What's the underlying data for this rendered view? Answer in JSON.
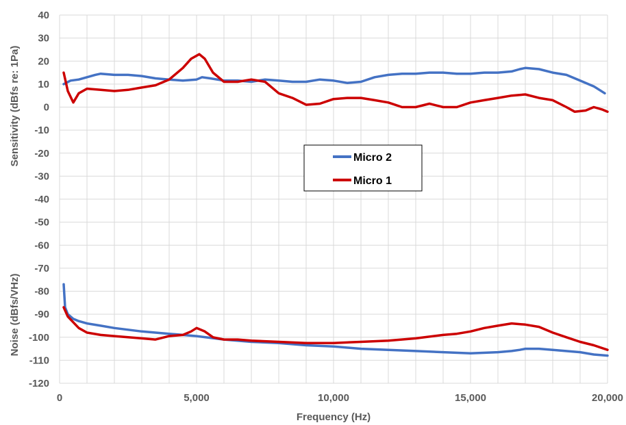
{
  "chart_data": {
    "type": "line",
    "xlabel": "Frequency (Hz)",
    "ylabels": [
      {
        "text": "Sensitivity (dBfs re: 1Pa)"
      },
      {
        "text": "Noise (dBfs/VHz)"
      }
    ],
    "xlim": [
      0,
      20000
    ],
    "ylim": [
      -120,
      40
    ],
    "xticks": [
      {
        "value": 0,
        "label": "0"
      },
      {
        "value": 5000,
        "label": "5,000"
      },
      {
        "value": 10000,
        "label": "10,000"
      },
      {
        "value": 15000,
        "label": "15,000"
      },
      {
        "value": 20000,
        "label": "20,000"
      }
    ],
    "yticks": [
      40,
      30,
      20,
      10,
      0,
      -10,
      -20,
      -30,
      -40,
      -50,
      -60,
      -70,
      -80,
      -90,
      -100,
      -110,
      -120
    ],
    "x_gridlines": [
      0,
      1000,
      2000,
      3000,
      4000,
      5000,
      6000,
      7000,
      8000,
      9000,
      10000,
      11000,
      12000,
      13000,
      14000,
      15000,
      16000,
      17000,
      18000,
      19000,
      20000
    ],
    "grid": true,
    "legend_placement": "center",
    "legend": [
      {
        "name": "Micro 2",
        "color": "#4472c4"
      },
      {
        "name": "Micro 1",
        "color": "#cc0000"
      }
    ],
    "series": [
      {
        "name": "Micro 2",
        "part": "sensitivity",
        "color": "#4472c4",
        "x": [
          150,
          400,
          700,
          1000,
          1300,
          1500,
          2000,
          2500,
          3000,
          3500,
          4000,
          4500,
          5000,
          5200,
          5500,
          6000,
          6500,
          7000,
          7500,
          8000,
          8500,
          9000,
          9500,
          10000,
          10500,
          11000,
          11500,
          12000,
          12500,
          13000,
          13500,
          14000,
          14500,
          15000,
          15500,
          16000,
          16500,
          16800,
          17000,
          17500,
          18000,
          18500,
          19000,
          19500,
          19900
        ],
        "y": [
          10,
          11.5,
          12,
          13,
          14,
          14.5,
          14,
          14,
          13.5,
          12.5,
          12,
          11.5,
          12,
          13,
          12.5,
          11.5,
          11.5,
          11,
          12,
          11.5,
          11,
          11,
          12,
          11.5,
          10.5,
          11,
          13,
          14,
          14.5,
          14.5,
          15,
          15,
          14.5,
          14.5,
          15,
          15,
          15.5,
          16.5,
          17,
          16.5,
          15,
          14,
          11.5,
          9,
          6
        ]
      },
      {
        "name": "Micro 1",
        "part": "sensitivity",
        "color": "#cc0000",
        "x": [
          150,
          300,
          500,
          700,
          1000,
          1500,
          2000,
          2500,
          3000,
          3500,
          4000,
          4500,
          4800,
          5100,
          5300,
          5600,
          6000,
          6500,
          7000,
          7500,
          8000,
          8500,
          9000,
          9500,
          10000,
          10500,
          11000,
          11500,
          12000,
          12500,
          13000,
          13500,
          14000,
          14500,
          15000,
          15500,
          16000,
          16500,
          17000,
          17500,
          18000,
          18500,
          18800,
          19200,
          19500,
          19800,
          20000
        ],
        "y": [
          15,
          7,
          2,
          6,
          8,
          7.5,
          7,
          7.5,
          8.5,
          9.5,
          12,
          17,
          21,
          23,
          21,
          15,
          11,
          11,
          12,
          11,
          6,
          4,
          1,
          1.5,
          3.5,
          4,
          4,
          3,
          2,
          0,
          0,
          1.5,
          0,
          0,
          2,
          3,
          4,
          5,
          5.5,
          4,
          3,
          0,
          -2,
          -1.5,
          0,
          -1,
          -2
        ]
      },
      {
        "name": "Micro 2",
        "part": "noise",
        "color": "#4472c4",
        "x": [
          150,
          200,
          300,
          500,
          700,
          1000,
          1500,
          2000,
          3000,
          4000,
          5000,
          6000,
          7000,
          8000,
          9000,
          10000,
          11000,
          12000,
          13000,
          14000,
          15000,
          16000,
          16500,
          16800,
          17000,
          17500,
          18000,
          19000,
          19500,
          20000
        ],
        "y": [
          -77,
          -87,
          -90,
          -92,
          -93,
          -94,
          -95,
          -96,
          -97.5,
          -98.5,
          -99.5,
          -101,
          -102,
          -102.5,
          -103.5,
          -104,
          -105,
          -105.5,
          -106,
          -106.5,
          -107,
          -106.5,
          -106,
          -105.5,
          -105,
          -105,
          -105.5,
          -106.5,
          -107.5,
          -108
        ]
      },
      {
        "name": "Micro 1",
        "part": "noise",
        "color": "#cc0000",
        "x": [
          150,
          300,
          500,
          700,
          1000,
          1500,
          2000,
          3000,
          3500,
          4000,
          4500,
          4800,
          5000,
          5300,
          5600,
          6000,
          6500,
          7000,
          8000,
          9000,
          10000,
          11000,
          12000,
          13000,
          14000,
          14500,
          15000,
          15500,
          16000,
          16500,
          17000,
          17500,
          18000,
          18500,
          19000,
          19500,
          20000
        ],
        "y": [
          -87,
          -91,
          -93.5,
          -96,
          -98,
          -99,
          -99.5,
          -100.5,
          -101,
          -99.5,
          -99,
          -97.5,
          -96,
          -97.5,
          -100,
          -101,
          -101,
          -101.5,
          -102,
          -102.5,
          -102.5,
          -102,
          -101.5,
          -100.5,
          -99,
          -98.5,
          -97.5,
          -96,
          -95,
          -94,
          -94.5,
          -95.5,
          -98,
          -100,
          -102,
          -103.5,
          -105.5
        ]
      }
    ]
  }
}
